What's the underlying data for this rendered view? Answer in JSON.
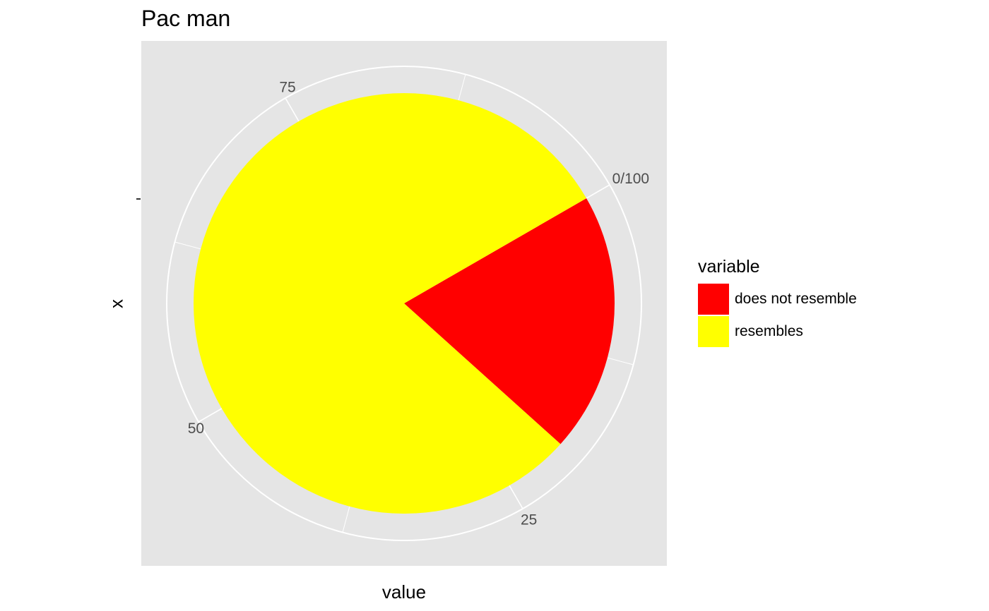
{
  "chart_data": {
    "type": "pie",
    "title": "Pac man",
    "xlabel": "value",
    "ylabel": "x",
    "theta_ticks": [
      "0/100",
      "25",
      "50",
      "75"
    ],
    "theta_tick_values": [
      0,
      25,
      50,
      75
    ],
    "theta_range": [
      0,
      100
    ],
    "slices": [
      {
        "label": "does not resemble",
        "value": 20,
        "color": "#FF0000"
      },
      {
        "label": "resembles",
        "value": 80,
        "color": "#FFFF00"
      }
    ],
    "legend": {
      "title": "variable",
      "position": "right"
    },
    "panel_background": "#E5E5E5",
    "grid": true
  }
}
